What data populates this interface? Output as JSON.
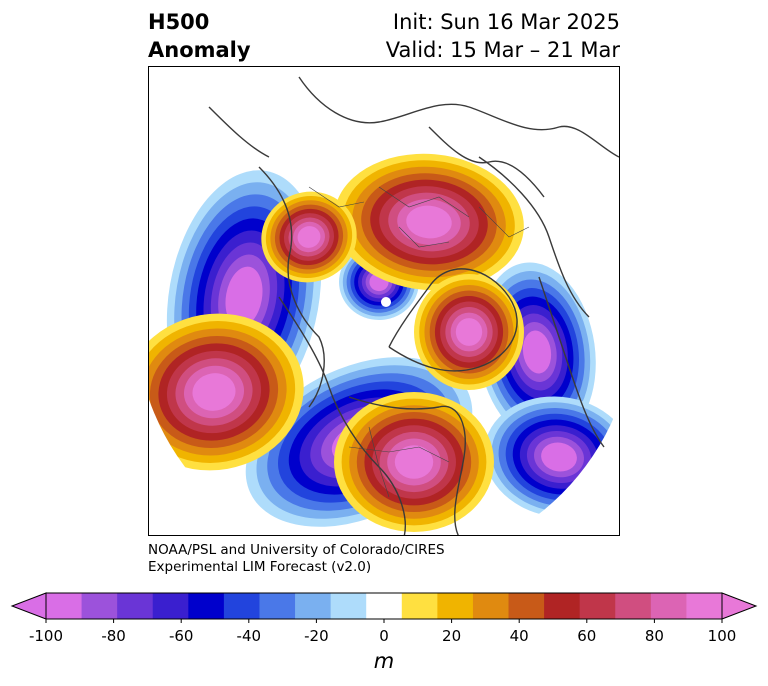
{
  "title": {
    "left_line1": "H500",
    "left_line2": "Anomaly",
    "right_line1": "Init: Sun 16 Mar 2025",
    "right_line2": "Valid: 15 Mar – 21 Mar"
  },
  "credit": {
    "line1": "NOAA/PSL and University of Colorado/CIRES",
    "line2": "Experimental LIM Forecast (v2.0)"
  },
  "colorbar": {
    "unit": "m",
    "ticks": [
      "-100",
      "-80",
      "-60",
      "-40",
      "-20",
      "0",
      "20",
      "40",
      "60",
      "80",
      "100"
    ],
    "colors": [
      "#d96ee6",
      "#9c52db",
      "#6a35d6",
      "#3a1fcf",
      "#0000cc",
      "#2244dd",
      "#4a78e8",
      "#7ab0f0",
      "#aedcfb",
      "#ffffff",
      "#ffe040",
      "#f0b400",
      "#e08a10",
      "#c85a18",
      "#b02424",
      "#c0364a",
      "#d04e80",
      "#dc64b4",
      "#e878d8"
    ],
    "under_color": "#d96ee6",
    "over_color": "#e878d8"
  },
  "map": {
    "projection": "north-polar-stereographic",
    "field": "500 hPa geopotential height anomaly"
  }
}
